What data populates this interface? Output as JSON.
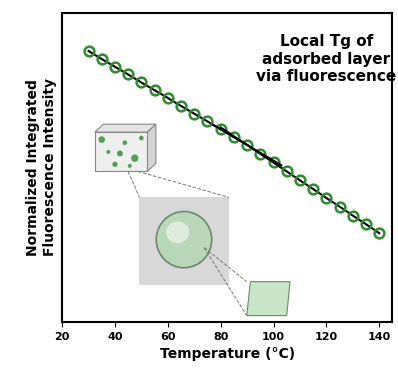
{
  "chart_data": {
    "type": "line",
    "x_label": "Temperature (°C)",
    "y_label": "Normalized Integrated\nFluorescence Intensity",
    "annotation": "Local Tg of\nadsorbed layer\nvia fluorescence",
    "x": [
      30,
      35,
      40,
      45,
      50,
      55,
      60,
      65,
      70,
      75,
      80,
      85,
      90,
      95,
      100,
      105,
      110,
      115,
      120,
      125,
      130,
      135,
      140
    ],
    "series": [
      {
        "values": [
          0.877,
          0.851,
          0.826,
          0.801,
          0.775,
          0.75,
          0.725,
          0.699,
          0.674,
          0.649,
          0.623,
          0.598,
          0.573,
          0.544,
          0.516,
          0.487,
          0.458,
          0.43,
          0.401,
          0.373,
          0.344,
          0.316,
          0.287
        ],
        "color": "#2e8b2e",
        "marker": "o"
      }
    ],
    "fit_lines": [
      {
        "x": [
          77,
          103
        ],
        "y": [
          0.639,
          0.507
        ]
      },
      {
        "x": [
          80,
          103
        ],
        "y": [
          0.63,
          0.499
        ]
      }
    ],
    "xlim": [
      20,
      145
    ],
    "xticks": [
      20,
      40,
      60,
      80,
      100,
      120,
      140
    ],
    "ylim": [
      0,
      1
    ],
    "yticks": [],
    "tick_labels": "x",
    "grid": false
  }
}
